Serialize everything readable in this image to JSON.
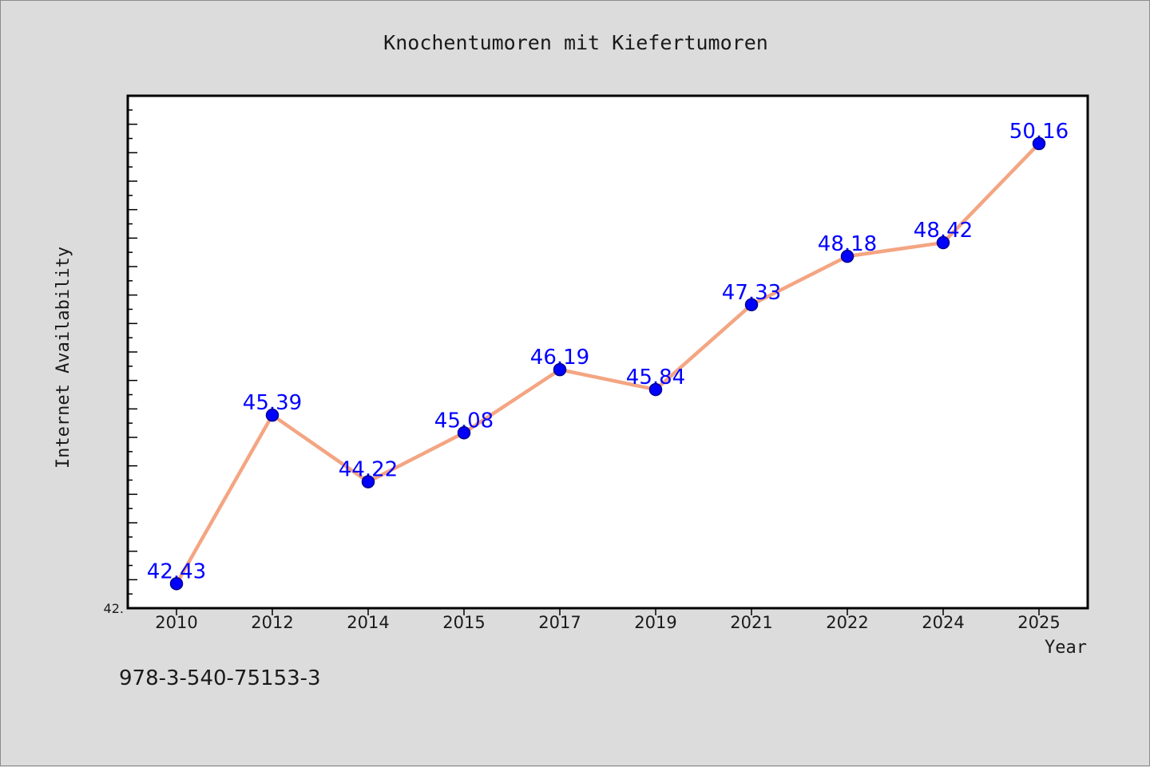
{
  "footer_code": "978-3-540-75153-3",
  "chart_data": {
    "type": "line",
    "title": "Knochentumoren mit Kiefertumoren",
    "xlabel": "Year",
    "ylabel": "Internet Availability",
    "categories": [
      "2010",
      "2012",
      "2014",
      "2015",
      "2017",
      "2019",
      "2021",
      "2022",
      "2024",
      "2025"
    ],
    "series": [
      {
        "values": [
          42.43,
          45.39,
          44.22,
          45.08,
          46.19,
          45.84,
          47.33,
          48.18,
          48.42,
          50.16
        ],
        "data_labels": [
          "42.43",
          "45.39",
          "44.22",
          "45.08",
          "46.19",
          "45.84",
          "47.33",
          "48.18",
          "48.42",
          "50.16"
        ]
      }
    ],
    "y_tick_labels": [
      "42."
    ],
    "ylim": [
      42.0,
      51.0
    ],
    "grid": false,
    "legend": "none",
    "colors": {
      "line": "#f4a582",
      "marker": "#0000ff",
      "marker_edge": "#00008b",
      "data_label": "#0000ff",
      "plot_background": "#ffffff",
      "figure_background": "#dcdcdc"
    }
  }
}
